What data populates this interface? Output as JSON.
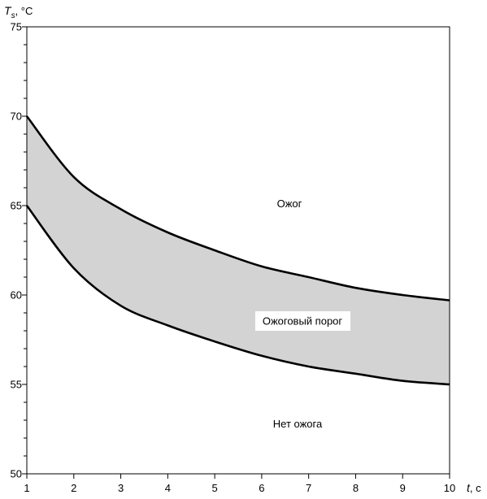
{
  "chart_data": {
    "type": "line",
    "band_between_series": true,
    "x": [
      1,
      2,
      3,
      4,
      5,
      6,
      7,
      8,
      9,
      10
    ],
    "series": [
      {
        "values": [
          70,
          66.6,
          64.8,
          63.5,
          62.5,
          61.6,
          61.0,
          60.4,
          60.0,
          59.7
        ]
      },
      {
        "values": [
          65,
          61.5,
          59.4,
          58.3,
          57.4,
          56.6,
          56.0,
          55.6,
          55.2,
          55.0
        ]
      }
    ],
    "xlabel": {
      "symbol": "t",
      "suffix": ", с"
    },
    "ylabel": {
      "symbol": "T",
      "subscript": "s",
      "suffix": ", °C"
    },
    "xlim": [
      1,
      10
    ],
    "ylim": [
      50,
      75
    ],
    "xticks": [
      1,
      2,
      3,
      4,
      5,
      6,
      7,
      8,
      9,
      10
    ],
    "yticks": [
      50,
      55,
      60,
      65,
      70,
      75
    ],
    "grid": false,
    "annotations": [
      {
        "text": "Ожог"
      },
      {
        "text": "Ожоговый порог"
      },
      {
        "text": "Нет ожога"
      }
    ],
    "colors": {
      "line": "#000000",
      "band": "#d3d3d3",
      "background": "#ffffff"
    }
  }
}
